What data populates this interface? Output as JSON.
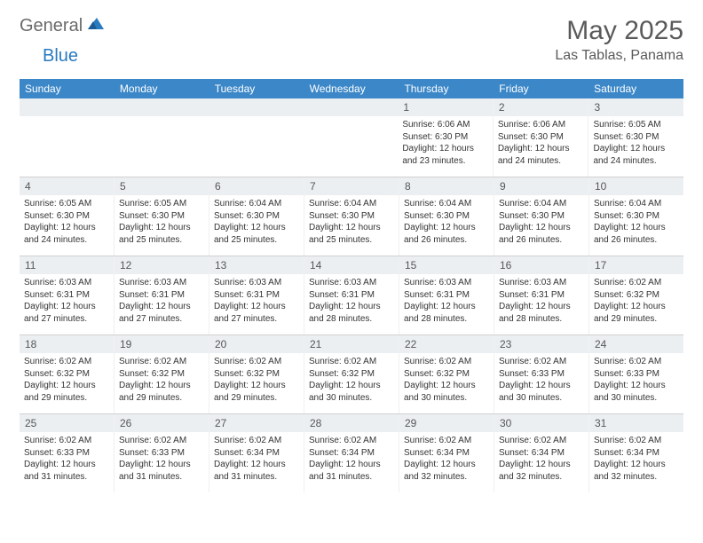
{
  "logo": {
    "general": "General",
    "blue": "Blue"
  },
  "title": "May 2025",
  "location": "Las Tablas, Panama",
  "colors": {
    "header_bg": "#3b87c8",
    "daynum_bg": "#eceff2",
    "text_main": "#333333",
    "text_muted": "#5a5a5a"
  },
  "weekdays": [
    "Sunday",
    "Monday",
    "Tuesday",
    "Wednesday",
    "Thursday",
    "Friday",
    "Saturday"
  ],
  "weeks": [
    [
      null,
      null,
      null,
      null,
      {
        "n": "1",
        "sunrise": "6:06 AM",
        "sunset": "6:30 PM",
        "daylight": "12 hours and 23 minutes."
      },
      {
        "n": "2",
        "sunrise": "6:06 AM",
        "sunset": "6:30 PM",
        "daylight": "12 hours and 24 minutes."
      },
      {
        "n": "3",
        "sunrise": "6:05 AM",
        "sunset": "6:30 PM",
        "daylight": "12 hours and 24 minutes."
      }
    ],
    [
      {
        "n": "4",
        "sunrise": "6:05 AM",
        "sunset": "6:30 PM",
        "daylight": "12 hours and 24 minutes."
      },
      {
        "n": "5",
        "sunrise": "6:05 AM",
        "sunset": "6:30 PM",
        "daylight": "12 hours and 25 minutes."
      },
      {
        "n": "6",
        "sunrise": "6:04 AM",
        "sunset": "6:30 PM",
        "daylight": "12 hours and 25 minutes."
      },
      {
        "n": "7",
        "sunrise": "6:04 AM",
        "sunset": "6:30 PM",
        "daylight": "12 hours and 25 minutes."
      },
      {
        "n": "8",
        "sunrise": "6:04 AM",
        "sunset": "6:30 PM",
        "daylight": "12 hours and 26 minutes."
      },
      {
        "n": "9",
        "sunrise": "6:04 AM",
        "sunset": "6:30 PM",
        "daylight": "12 hours and 26 minutes."
      },
      {
        "n": "10",
        "sunrise": "6:04 AM",
        "sunset": "6:30 PM",
        "daylight": "12 hours and 26 minutes."
      }
    ],
    [
      {
        "n": "11",
        "sunrise": "6:03 AM",
        "sunset": "6:31 PM",
        "daylight": "12 hours and 27 minutes."
      },
      {
        "n": "12",
        "sunrise": "6:03 AM",
        "sunset": "6:31 PM",
        "daylight": "12 hours and 27 minutes."
      },
      {
        "n": "13",
        "sunrise": "6:03 AM",
        "sunset": "6:31 PM",
        "daylight": "12 hours and 27 minutes."
      },
      {
        "n": "14",
        "sunrise": "6:03 AM",
        "sunset": "6:31 PM",
        "daylight": "12 hours and 28 minutes."
      },
      {
        "n": "15",
        "sunrise": "6:03 AM",
        "sunset": "6:31 PM",
        "daylight": "12 hours and 28 minutes."
      },
      {
        "n": "16",
        "sunrise": "6:03 AM",
        "sunset": "6:31 PM",
        "daylight": "12 hours and 28 minutes."
      },
      {
        "n": "17",
        "sunrise": "6:02 AM",
        "sunset": "6:32 PM",
        "daylight": "12 hours and 29 minutes."
      }
    ],
    [
      {
        "n": "18",
        "sunrise": "6:02 AM",
        "sunset": "6:32 PM",
        "daylight": "12 hours and 29 minutes."
      },
      {
        "n": "19",
        "sunrise": "6:02 AM",
        "sunset": "6:32 PM",
        "daylight": "12 hours and 29 minutes."
      },
      {
        "n": "20",
        "sunrise": "6:02 AM",
        "sunset": "6:32 PM",
        "daylight": "12 hours and 29 minutes."
      },
      {
        "n": "21",
        "sunrise": "6:02 AM",
        "sunset": "6:32 PM",
        "daylight": "12 hours and 30 minutes."
      },
      {
        "n": "22",
        "sunrise": "6:02 AM",
        "sunset": "6:32 PM",
        "daylight": "12 hours and 30 minutes."
      },
      {
        "n": "23",
        "sunrise": "6:02 AM",
        "sunset": "6:33 PM",
        "daylight": "12 hours and 30 minutes."
      },
      {
        "n": "24",
        "sunrise": "6:02 AM",
        "sunset": "6:33 PM",
        "daylight": "12 hours and 30 minutes."
      }
    ],
    [
      {
        "n": "25",
        "sunrise": "6:02 AM",
        "sunset": "6:33 PM",
        "daylight": "12 hours and 31 minutes."
      },
      {
        "n": "26",
        "sunrise": "6:02 AM",
        "sunset": "6:33 PM",
        "daylight": "12 hours and 31 minutes."
      },
      {
        "n": "27",
        "sunrise": "6:02 AM",
        "sunset": "6:34 PM",
        "daylight": "12 hours and 31 minutes."
      },
      {
        "n": "28",
        "sunrise": "6:02 AM",
        "sunset": "6:34 PM",
        "daylight": "12 hours and 31 minutes."
      },
      {
        "n": "29",
        "sunrise": "6:02 AM",
        "sunset": "6:34 PM",
        "daylight": "12 hours and 32 minutes."
      },
      {
        "n": "30",
        "sunrise": "6:02 AM",
        "sunset": "6:34 PM",
        "daylight": "12 hours and 32 minutes."
      },
      {
        "n": "31",
        "sunrise": "6:02 AM",
        "sunset": "6:34 PM",
        "daylight": "12 hours and 32 minutes."
      }
    ]
  ],
  "labels": {
    "sunrise": "Sunrise:",
    "sunset": "Sunset:",
    "daylight": "Daylight:"
  }
}
